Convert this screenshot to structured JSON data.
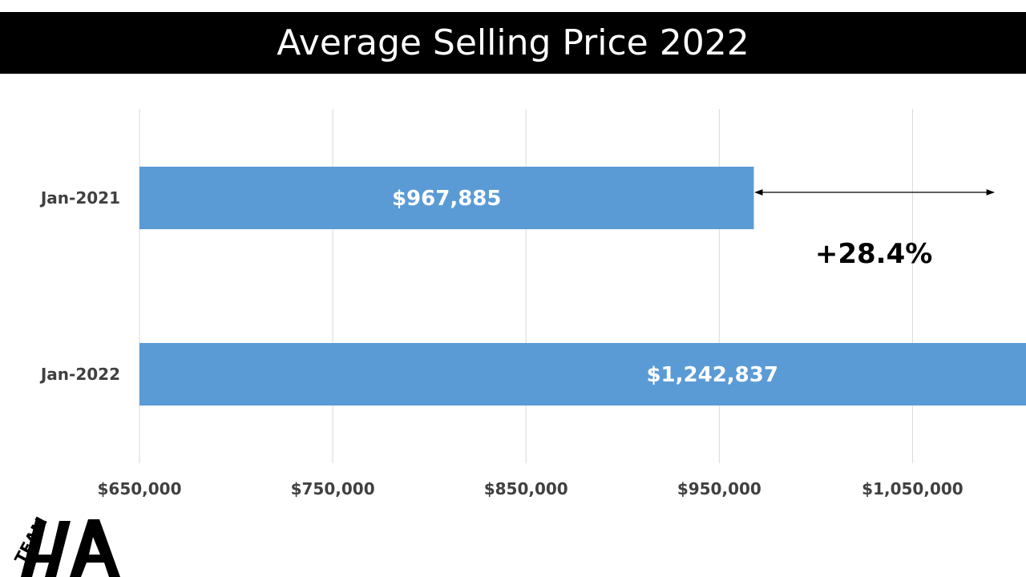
{
  "header": {
    "title": "Average Selling Price 2022"
  },
  "chart_data": {
    "type": "bar",
    "orientation": "horizontal",
    "title": "Average Selling Price 2022",
    "categories": [
      "Jan-2021",
      "Jan-2022"
    ],
    "values": [
      967885,
      1242837
    ],
    "data_labels": [
      "$967,885",
      "$1,242,837"
    ],
    "xlim": [
      650000,
      1100000
    ],
    "x_ticks": [
      650000,
      750000,
      850000,
      950000,
      1050000
    ],
    "x_tick_labels": [
      "$650,000",
      "$750,000",
      "$850,000",
      "$950,000",
      "$1,050,000"
    ],
    "grid": true,
    "legend": "none",
    "annotation": {
      "text": "+28.4%",
      "arrow_from_value": 967885,
      "arrow_to_value": 1092000
    },
    "colors": {
      "bar": "#5B9BD5",
      "grid": "#D9D9D9",
      "tick_text": "#404040",
      "bar_label": "#ffffff"
    }
  },
  "logo": {
    "text_top": "TEAM",
    "text_main": "HA"
  }
}
